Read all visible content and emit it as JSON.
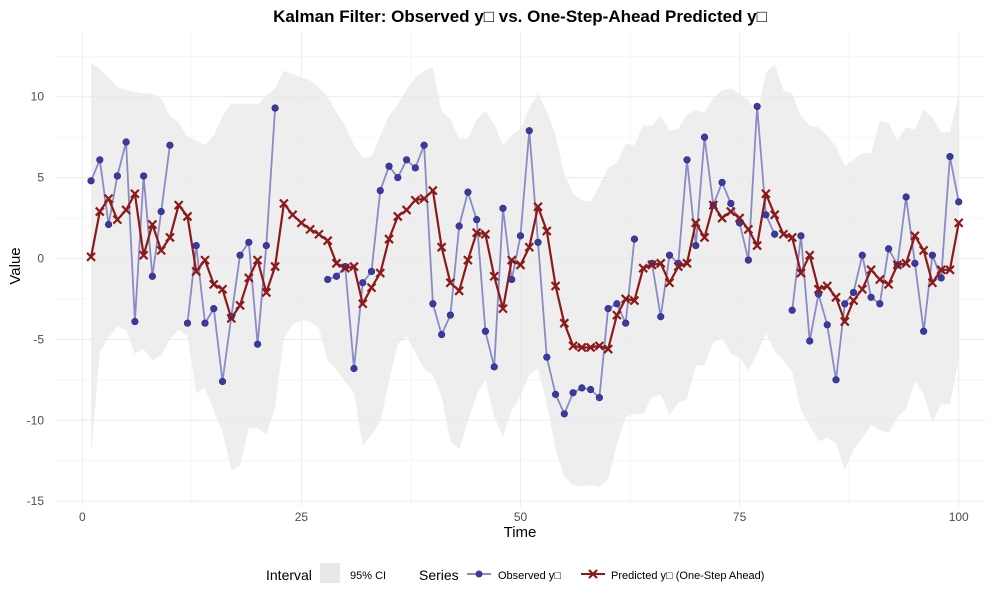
{
  "chart_data": {
    "type": "line",
    "title": "Kalman Filter: Observed y□ vs. One-Step-Ahead Predicted y□",
    "xlabel": "Time",
    "ylabel": "Value",
    "xlim": [
      -3,
      103
    ],
    "ylim": [
      -15.3,
      14
    ],
    "x_ticks": [
      0,
      25,
      50,
      75,
      100
    ],
    "y_ticks": [
      -15,
      -10,
      -5,
      0,
      5,
      10
    ],
    "grid": true,
    "legend_position": "bottom",
    "colors": {
      "observed": "#3b3b9e",
      "observed_line": "#8a8ac4",
      "predicted": "#8b1a1a",
      "ci_fill": "#e8e8e8"
    },
    "legend": {
      "interval_title": "Interval",
      "interval_label": "95% CI",
      "series_title": "Series",
      "observed_label": "Observed y□",
      "predicted_label": "Predicted y□ (One-Step Ahead)"
    },
    "x": [
      1,
      2,
      3,
      4,
      5,
      6,
      7,
      8,
      9,
      10,
      11,
      12,
      13,
      14,
      15,
      16,
      17,
      18,
      19,
      20,
      21,
      22,
      23,
      24,
      25,
      26,
      27,
      28,
      29,
      30,
      31,
      32,
      33,
      34,
      35,
      36,
      37,
      38,
      39,
      40,
      41,
      42,
      43,
      44,
      45,
      46,
      47,
      48,
      49,
      50,
      51,
      52,
      53,
      54,
      55,
      56,
      57,
      58,
      59,
      60,
      61,
      62,
      63,
      64,
      65,
      66,
      67,
      68,
      69,
      70,
      71,
      72,
      73,
      74,
      75,
      76,
      77,
      78,
      79,
      80,
      81,
      82,
      83,
      84,
      85,
      86,
      87,
      88,
      89,
      90,
      91,
      92,
      93,
      94,
      95,
      96,
      97,
      98,
      99,
      100
    ],
    "series": [
      {
        "name": "Observed y□",
        "values": [
          4.8,
          6.1,
          2.1,
          5.1,
          7.2,
          -3.9,
          5.1,
          -1.1,
          2.9,
          7.0,
          null,
          -4.0,
          0.8,
          -4.0,
          -3.1,
          -7.6,
          -3.6,
          0.2,
          1.0,
          -5.3,
          0.8,
          9.3,
          null,
          null,
          null,
          null,
          null,
          -1.3,
          -1.1,
          -0.5,
          -6.8,
          -1.5,
          -0.8,
          4.2,
          5.7,
          5.0,
          6.1,
          5.6,
          7.0,
          -2.8,
          -4.7,
          -3.5,
          2.0,
          4.1,
          2.4,
          -4.5,
          -6.7,
          3.1,
          -1.3,
          1.4,
          7.9,
          1.0,
          -6.1,
          -8.4,
          -9.6,
          -8.3,
          -8.0,
          -8.1,
          -8.6,
          -3.1,
          -2.8,
          -4.0,
          1.2,
          null,
          -0.3,
          -3.6,
          0.2,
          -0.3,
          6.1,
          0.8,
          7.5,
          3.3,
          4.7,
          3.4,
          2.2,
          -0.1,
          9.4,
          2.7,
          1.5,
          null,
          -3.2,
          1.4,
          -5.1,
          -2.2,
          -4.1,
          -7.5,
          -2.8,
          -2.1,
          0.2,
          -2.4,
          -2.8,
          0.6,
          -0.4,
          3.8,
          -0.3,
          -4.5,
          0.2,
          -1.2,
          6.3,
          3.5
        ]
      },
      {
        "name": "Predicted y□ (One-Step Ahead)",
        "values": [
          0.1,
          2.9,
          3.7,
          2.4,
          3.0,
          4.0,
          0.2,
          2.1,
          0.5,
          1.3,
          3.3,
          2.6,
          -0.8,
          -0.1,
          -1.6,
          -1.9,
          -3.7,
          -2.9,
          -1.2,
          -0.1,
          -2.1,
          -0.5,
          3.4,
          2.7,
          2.2,
          1.8,
          1.5,
          1.1,
          -0.3,
          -0.6,
          -0.5,
          -2.8,
          -1.8,
          -0.9,
          1.2,
          2.6,
          3.0,
          3.6,
          3.7,
          4.2,
          0.7,
          -1.5,
          -2.0,
          -0.1,
          1.6,
          1.5,
          -1.1,
          -3.1,
          -0.1,
          -0.4,
          0.7,
          3.2,
          1.7,
          -1.7,
          -4.0,
          -5.4,
          -5.5,
          -5.5,
          -5.4,
          -5.6,
          -3.5,
          -2.5,
          -2.6,
          -0.6,
          -0.4,
          -0.3,
          -1.5,
          -0.5,
          -0.3,
          2.2,
          1.3,
          3.3,
          2.5,
          2.9,
          2.5,
          1.8,
          0.8,
          4.0,
          2.7,
          1.5,
          1.3,
          -0.9,
          0.2,
          -1.9,
          -1.7,
          -2.4,
          -3.9,
          -2.6,
          -1.9,
          -0.7,
          -1.3,
          -1.6,
          -0.4,
          -0.3,
          1.4,
          0.5,
          -1.5,
          -0.7,
          -0.7,
          2.2
        ]
      }
    ],
    "ci_upper": [
      12.1,
      11.7,
      11.2,
      10.6,
      10.4,
      10.3,
      10.2,
      10.2,
      9.9,
      8.8,
      8.4,
      7.5,
      7.3,
      7.0,
      7.6,
      8.8,
      9.6,
      9.5,
      9.6,
      9.5,
      10.1,
      10.5,
      11.6,
      11.4,
      11.2,
      11.0,
      10.6,
      10.0,
      9.0,
      8.2,
      7.0,
      6.2,
      6.3,
      7.6,
      8.8,
      9.5,
      10.4,
      11.2,
      11.6,
      11.8,
      9.1,
      8.6,
      7.4,
      7.4,
      8.6,
      9.1,
      8.3,
      7.0,
      7.6,
      8.0,
      9.3,
      10.2,
      9.1,
      7.6,
      5.2,
      4.0,
      3.6,
      3.5,
      4.5,
      5.6,
      5.9,
      7.1,
      7.0,
      8.2,
      8.2,
      8.8,
      7.9,
      8.0,
      8.9,
      9.2,
      9.0,
      9.9,
      10.4,
      10.5,
      10.2,
      9.8,
      8.8,
      11.5,
      12.0,
      10.4,
      10.2,
      8.8,
      8.2,
      8.1,
      7.6,
      6.9,
      5.7,
      6.1,
      6.5,
      6.5,
      8.5,
      8.4,
      7.3,
      8.1,
      8.0,
      9.2,
      8.7,
      7.8,
      7.8,
      10.1
    ],
    "ci_lower": [
      -12.1,
      -5.8,
      -4.9,
      -4.2,
      -4.4,
      -5.9,
      -5.6,
      -6.3,
      -6.0,
      -5.0,
      -4.4,
      -4.8,
      -8.3,
      -8.0,
      -9.4,
      -10.7,
      -13.1,
      -12.8,
      -10.5,
      -10.5,
      -10.9,
      -9.2,
      -4.9,
      -4.1,
      -3.8,
      -3.9,
      -4.3,
      -6.3,
      -6.9,
      -7.6,
      -8.3,
      -11.6,
      -10.9,
      -10.1,
      -7.6,
      -5.3,
      -4.8,
      -5.8,
      -6.8,
      -7.2,
      -8.5,
      -11.3,
      -11.8,
      -10.1,
      -8.4,
      -7.5,
      -9.8,
      -11.0,
      -9.4,
      -8.5,
      -7.2,
      -6.8,
      -9.0,
      -11.8,
      -13.5,
      -14.0,
      -14.1,
      -14.0,
      -14.1,
      -13.7,
      -11.5,
      -9.8,
      -9.6,
      -9.6,
      -8.6,
      -8.4,
      -9.7,
      -8.9,
      -8.7,
      -6.6,
      -6.6,
      -5.2,
      -4.9,
      -5.9,
      -6.1,
      -6.9,
      -5.9,
      -4.6,
      -5.7,
      -6.3,
      -7.0,
      -9.4,
      -10.3,
      -11.3,
      -11.1,
      -11.4,
      -13.1,
      -11.8,
      -11.1,
      -10.3,
      -10.6,
      -10.8,
      -9.8,
      -9.3,
      -7.6,
      -8.4,
      -10.1,
      -9.0,
      -9.0,
      -6.3
    ]
  }
}
